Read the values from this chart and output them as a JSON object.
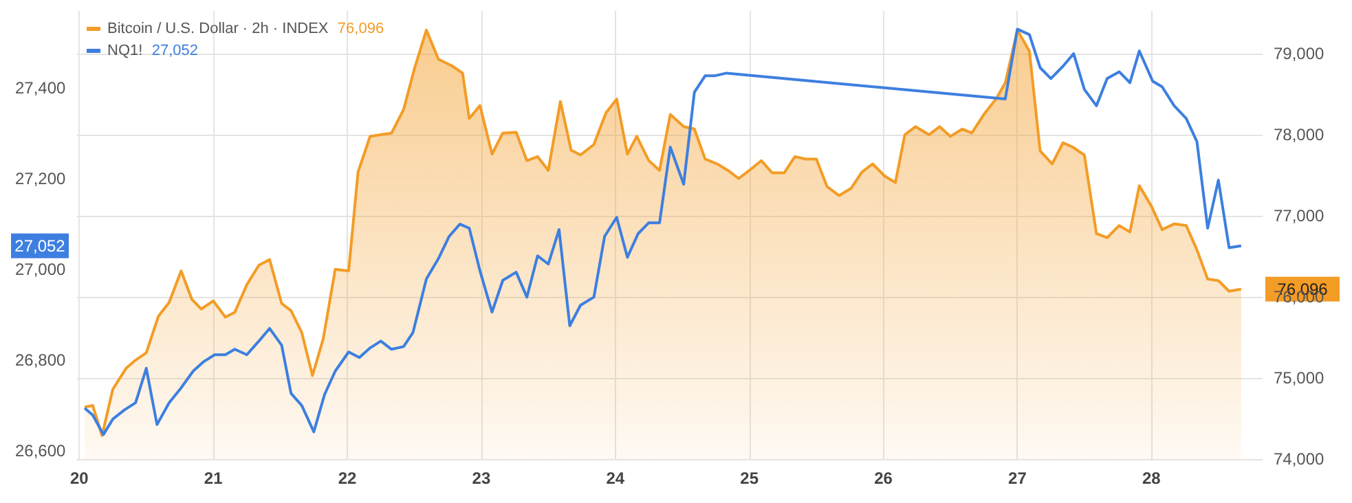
{
  "chart_data": {
    "type": "line",
    "series": [
      {
        "name": "Bitcoin / U.S. Dollar · 2h · INDEX",
        "color": "#f39c26",
        "type": "area",
        "axis": "y2",
        "x": [
          20.04,
          20.1,
          20.17,
          20.25,
          20.35,
          20.42,
          20.5,
          20.59,
          20.67,
          20.76,
          20.84,
          20.91,
          21.0,
          21.09,
          21.16,
          21.25,
          21.34,
          21.42,
          21.51,
          21.58,
          21.66,
          21.74,
          21.82,
          21.91,
          22.01,
          22.08,
          22.17,
          22.25,
          22.33,
          22.42,
          22.5,
          22.59,
          22.68,
          22.78,
          22.86,
          22.91,
          22.99,
          23.08,
          23.16,
          23.26,
          23.34,
          23.42,
          23.5,
          23.59,
          23.67,
          23.74,
          23.84,
          23.93,
          24.01,
          24.09,
          24.16,
          24.25,
          24.33,
          24.41,
          24.51,
          24.59,
          24.67,
          24.76,
          24.84,
          24.92,
          25.0,
          25.09,
          25.17,
          25.26,
          25.34,
          25.42,
          25.5,
          25.58,
          25.67,
          25.76,
          25.84,
          25.92,
          26.01,
          26.09,
          26.16,
          26.24,
          26.34,
          26.42,
          26.5,
          26.59,
          26.66,
          26.75,
          26.84,
          26.91,
          27.0,
          27.09,
          27.17,
          27.26,
          27.34,
          27.41,
          27.5,
          27.59,
          27.67,
          27.76,
          27.84,
          27.91,
          28.0,
          28.08,
          28.17,
          28.26,
          28.34,
          28.42,
          28.5,
          28.58,
          28.67
        ],
        "values": [
          74640,
          74660,
          74290,
          74860,
          75120,
          75220,
          75310,
          75760,
          75930,
          76320,
          75970,
          75850,
          75950,
          75750,
          75810,
          76150,
          76390,
          76460,
          75920,
          75830,
          75560,
          75030,
          75480,
          76340,
          76320,
          77540,
          77980,
          78000,
          78020,
          78310,
          78810,
          79290,
          78930,
          78850,
          78760,
          78200,
          78360,
          77760,
          78020,
          78030,
          77680,
          77730,
          77560,
          78410,
          77810,
          77750,
          77880,
          78270,
          78440,
          77760,
          77980,
          77680,
          77560,
          78250,
          78100,
          78070,
          77700,
          77640,
          77560,
          77460,
          77560,
          77680,
          77530,
          77530,
          77730,
          77700,
          77700,
          77360,
          77250,
          77340,
          77540,
          77640,
          77490,
          77410,
          78000,
          78100,
          78000,
          78100,
          77980,
          78070,
          78020,
          78250,
          78440,
          78640,
          79290,
          79030,
          77800,
          77640,
          77900,
          77850,
          77750,
          76780,
          76730,
          76880,
          76800,
          77370,
          77120,
          76830,
          76900,
          76880,
          76580,
          76220,
          76200,
          76070,
          76096
        ]
      },
      {
        "name": "NQ1!",
        "color": "#3d7fe0",
        "axis": "y",
        "x": [
          20.04,
          20.1,
          20.18,
          20.25,
          20.34,
          20.42,
          20.5,
          20.58,
          20.67,
          20.76,
          20.85,
          20.93,
          21.01,
          21.09,
          21.16,
          21.25,
          21.34,
          21.42,
          21.51,
          21.58,
          21.66,
          21.75,
          21.83,
          21.91,
          22.01,
          22.09,
          22.17,
          22.25,
          22.33,
          22.42,
          22.49,
          22.59,
          22.68,
          22.76,
          22.84,
          22.91,
          22.99,
          23.08,
          23.16,
          23.26,
          23.34,
          23.42,
          23.5,
          23.58,
          23.66,
          23.74,
          23.84,
          23.92,
          24.01,
          24.09,
          24.17,
          24.25,
          24.33,
          24.41,
          24.51,
          24.59,
          24.67,
          24.74,
          24.83,
          26.91,
          27.0,
          27.09,
          27.17,
          27.25,
          27.34,
          27.42,
          27.5,
          27.59,
          27.67,
          27.76,
          27.84,
          27.91,
          28.01,
          28.08,
          28.17,
          28.26,
          28.34,
          28.42,
          28.5,
          28.58,
          28.67
        ],
        "values": [
          26694,
          26679,
          26636,
          26670,
          26691,
          26706,
          26782,
          26658,
          26706,
          26739,
          26776,
          26797,
          26812,
          26812,
          26824,
          26812,
          26842,
          26870,
          26833,
          26727,
          26700,
          26642,
          26724,
          26776,
          26818,
          26806,
          26827,
          26842,
          26824,
          26830,
          26861,
          26979,
          27024,
          27073,
          27100,
          27091,
          26997,
          26906,
          26976,
          26994,
          26939,
          27030,
          27012,
          27088,
          26876,
          26921,
          26939,
          27073,
          27115,
          27027,
          27079,
          27103,
          27103,
          27270,
          27188,
          27391,
          27427,
          27427,
          27433,
          27376,
          27530,
          27518,
          27445,
          27421,
          27448,
          27476,
          27397,
          27361,
          27421,
          27436,
          27412,
          27482,
          27415,
          27403,
          27361,
          27333,
          27282,
          27091,
          27197,
          27048,
          27052
        ]
      }
    ],
    "annotations": [
      "76,096",
      "27,052"
    ],
    "xlim": [
      19.98,
      28.83
    ],
    "xticks": [
      20,
      21,
      22,
      23,
      24,
      25,
      26,
      27,
      28
    ],
    "ylim": [
      26582,
      27570
    ],
    "yticks": [
      {
        "value": 26600,
        "label": "26,600"
      },
      {
        "value": 26800,
        "label": "26,800"
      },
      {
        "value": 27000,
        "label": "27,000"
      },
      {
        "value": 27200,
        "label": "27,200"
      },
      {
        "value": 27400,
        "label": "27,400"
      }
    ],
    "y2lim": [
      74000,
      79526
    ],
    "y2ticks": [
      {
        "value": 74000,
        "label": "74,000"
      },
      {
        "value": 75000,
        "label": "75,000"
      },
      {
        "value": 76000,
        "label": "76,000"
      },
      {
        "value": 77000,
        "label": "77,000"
      },
      {
        "value": 78000,
        "label": "78,000"
      },
      {
        "value": 79000,
        "label": "79,000"
      }
    ],
    "grid": true,
    "legend": "top left",
    "marker": "none",
    "line_style": "solid"
  }
}
